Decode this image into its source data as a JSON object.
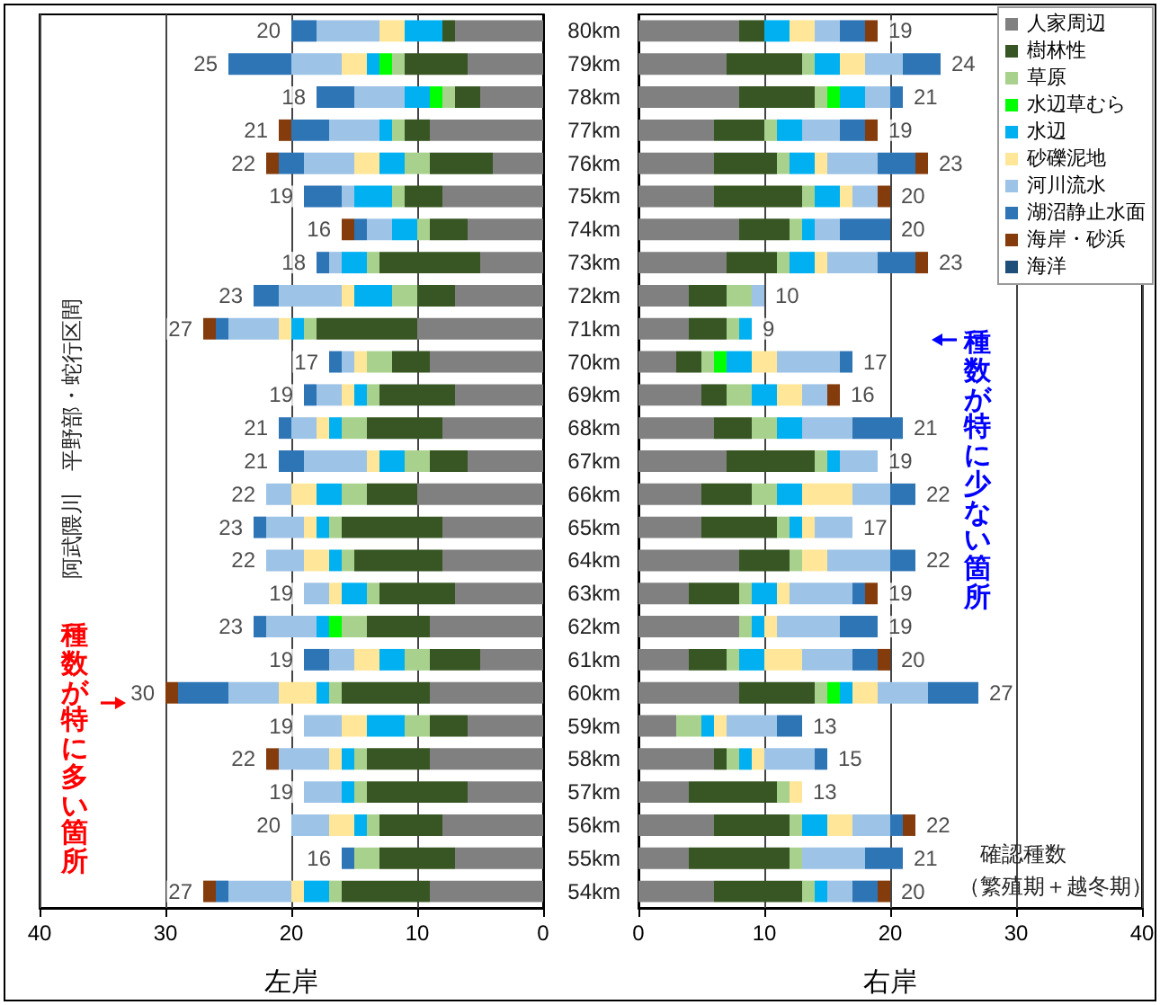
{
  "chart_data": [
    {
      "type": "bar",
      "orientation": "horizontal",
      "stacked": true,
      "xlabel": "左岸",
      "xlim": [
        40,
        0
      ],
      "xticks": [
        40,
        30,
        20,
        10,
        0
      ],
      "grid": "x",
      "tick_labels": "x",
      "categories": [
        null,
        null,
        null,
        null,
        null,
        null,
        null,
        null,
        null,
        null,
        null,
        null,
        null,
        null,
        null,
        null,
        null,
        null,
        null,
        null,
        null,
        null,
        null,
        null,
        null,
        null,
        null
      ],
      "series": [
        {
          "color": "#808080",
          "values": [
            7,
            6,
            5,
            9,
            4,
            8,
            6,
            5,
            7,
            10,
            9,
            7,
            8,
            6,
            10,
            8,
            8,
            7,
            9,
            5,
            9,
            6,
            9,
            6,
            8,
            7,
            9
          ]
        },
        {
          "color": "#375623",
          "values": [
            1,
            5,
            2,
            2,
            5,
            3,
            3,
            8,
            3,
            8,
            3,
            6,
            6,
            3,
            4,
            8,
            7,
            6,
            5,
            4,
            7,
            3,
            5,
            8,
            5,
            6,
            7
          ]
        },
        {
          "color": "#a9d18e",
          "values": [
            0,
            1,
            1,
            1,
            2,
            1,
            1,
            1,
            2,
            1,
            2,
            1,
            2,
            2,
            2,
            1,
            1,
            1,
            2,
            2,
            1,
            2,
            1,
            1,
            1,
            2,
            1
          ]
        },
        {
          "color": "#00ff00",
          "values": [
            0,
            1,
            1,
            0,
            0,
            0,
            0,
            0,
            0,
            0,
            0,
            0,
            0,
            0,
            0,
            0,
            0,
            0,
            1,
            0,
            0,
            0,
            0,
            0,
            0,
            0,
            0
          ]
        },
        {
          "color": "#00b0f0",
          "values": [
            3,
            1,
            2,
            1,
            2,
            3,
            2,
            2,
            3,
            1,
            0,
            1,
            1,
            2,
            2,
            1,
            1,
            2,
            1,
            2,
            1,
            3,
            1,
            1,
            1,
            0,
            2
          ]
        },
        {
          "color": "#ffe699",
          "values": [
            2,
            2,
            0,
            0,
            2,
            0,
            0,
            0,
            1,
            1,
            1,
            1,
            1,
            1,
            2,
            1,
            2,
            1,
            0,
            2,
            3,
            2,
            1,
            0,
            2,
            0,
            1
          ]
        },
        {
          "color": "#9dc3e6",
          "values": [
            5,
            4,
            4,
            4,
            4,
            1,
            2,
            1,
            5,
            4,
            1,
            2,
            2,
            5,
            2,
            3,
            3,
            2,
            4,
            2,
            4,
            3,
            4,
            3,
            3,
            0,
            5
          ]
        },
        {
          "color": "#2e75b6",
          "values": [
            2,
            5,
            3,
            3,
            2,
            3,
            1,
            1,
            2,
            1,
            1,
            1,
            1,
            2,
            0,
            1,
            0,
            0,
            1,
            2,
            4,
            0,
            0,
            0,
            0,
            1,
            1
          ]
        },
        {
          "color": "#843c0c",
          "values": [
            0,
            0,
            0,
            1,
            1,
            0,
            1,
            0,
            0,
            1,
            0,
            0,
            0,
            0,
            0,
            0,
            0,
            0,
            0,
            0,
            1,
            0,
            1,
            0,
            0,
            0,
            1
          ]
        },
        {
          "color": "#1f4e79",
          "values": [
            0,
            0,
            0,
            0,
            0,
            0,
            0,
            0,
            0,
            0,
            0,
            0,
            0,
            0,
            0,
            0,
            0,
            0,
            0,
            0,
            0,
            0,
            0,
            0,
            0,
            0,
            0
          ]
        }
      ],
      "totals": [
        "20",
        "25",
        "18",
        "21",
        "22",
        "19",
        "16",
        "18",
        "23",
        "27",
        "17",
        "19",
        "21",
        "21",
        "22",
        "23",
        "22",
        "19",
        "23",
        "19",
        "30",
        "19",
        "22",
        "19",
        "20",
        "16",
        "27"
      ],
      "annotations": [
        "阿武隈川　平野部・蛇行区間",
        "種数が特に多い箇所"
      ]
    },
    {
      "type": "bar",
      "orientation": "horizontal",
      "stacked": true,
      "xlabel": "右岸",
      "xlim": [
        0,
        40
      ],
      "xticks": [
        0,
        10,
        20,
        30,
        40
      ],
      "grid": "x",
      "legend": "top right",
      "categories": [
        "80km",
        "79km",
        "78km",
        "77km",
        "76km",
        "75km",
        "74km",
        "73km",
        "72km",
        "71km",
        "70km",
        "69km",
        "68km",
        "67km",
        "66km",
        "65km",
        "64km",
        "63km",
        "62km",
        "61km",
        "60km",
        "59km",
        "58km",
        "57km",
        "56km",
        "55km",
        "54km"
      ],
      "series": [
        {
          "name": "人家周辺",
          "color": "#808080",
          "values": [
            8,
            7,
            8,
            6,
            6,
            6,
            8,
            7,
            4,
            4,
            3,
            5,
            6,
            7,
            5,
            5,
            8,
            4,
            8,
            4,
            8,
            3,
            6,
            4,
            6,
            4,
            6
          ]
        },
        {
          "name": "樹林性",
          "color": "#375623",
          "values": [
            2,
            6,
            6,
            4,
            5,
            7,
            4,
            4,
            3,
            3,
            2,
            2,
            3,
            7,
            4,
            6,
            4,
            4,
            0,
            3,
            6,
            0,
            1,
            7,
            6,
            8,
            7
          ]
        },
        {
          "name": "草原",
          "color": "#a9d18e",
          "values": [
            0,
            1,
            1,
            1,
            1,
            1,
            1,
            1,
            2,
            1,
            1,
            2,
            2,
            1,
            2,
            1,
            1,
            1,
            1,
            1,
            1,
            2,
            1,
            1,
            1,
            1,
            1
          ]
        },
        {
          "name": "水辺草むら",
          "color": "#00ff00",
          "values": [
            0,
            0,
            1,
            0,
            0,
            0,
            0,
            0,
            0,
            0,
            1,
            0,
            0,
            0,
            0,
            0,
            0,
            0,
            0,
            0,
            1,
            0,
            0,
            0,
            0,
            0,
            0
          ]
        },
        {
          "name": "水辺",
          "color": "#00b0f0",
          "values": [
            2,
            2,
            2,
            2,
            2,
            2,
            1,
            2,
            0,
            1,
            2,
            2,
            2,
            1,
            2,
            1,
            0,
            2,
            1,
            2,
            1,
            1,
            1,
            0,
            2,
            0,
            1
          ]
        },
        {
          "name": "砂礫泥地",
          "color": "#ffe699",
          "values": [
            2,
            2,
            0,
            0,
            1,
            1,
            0,
            1,
            0,
            0,
            2,
            2,
            0,
            0,
            4,
            1,
            2,
            1,
            1,
            3,
            2,
            1,
            1,
            1,
            2,
            0,
            0
          ]
        },
        {
          "name": "河川流水",
          "color": "#9dc3e6",
          "values": [
            2,
            3,
            2,
            3,
            4,
            2,
            2,
            4,
            1,
            0,
            5,
            2,
            4,
            3,
            3,
            3,
            5,
            5,
            5,
            4,
            4,
            4,
            4,
            0,
            3,
            5,
            2
          ]
        },
        {
          "name": "湖沼静止水面",
          "color": "#2e75b6",
          "values": [
            2,
            3,
            1,
            2,
            3,
            0,
            4,
            3,
            0,
            0,
            1,
            0,
            4,
            0,
            2,
            0,
            2,
            1,
            3,
            2,
            4,
            2,
            1,
            0,
            1,
            3,
            2
          ]
        },
        {
          "name": "海岸・砂浜",
          "color": "#843c0c",
          "values": [
            1,
            0,
            0,
            1,
            1,
            1,
            0,
            1,
            0,
            0,
            0,
            1,
            0,
            0,
            0,
            0,
            0,
            1,
            0,
            1,
            0,
            0,
            0,
            0,
            1,
            0,
            1
          ]
        },
        {
          "name": "海洋",
          "color": "#1f4e79",
          "values": [
            0,
            0,
            0,
            0,
            0,
            0,
            0,
            0,
            0,
            0,
            0,
            0,
            0,
            0,
            0,
            0,
            0,
            0,
            0,
            0,
            0,
            0,
            0,
            0,
            0,
            0,
            0
          ]
        }
      ],
      "totals": [
        "19",
        "24",
        "21",
        "19",
        "23",
        "20",
        "20",
        "23",
        "10",
        "9",
        "17",
        "16",
        "21",
        "19",
        "22",
        "17",
        "22",
        "19",
        "19",
        "20",
        "27",
        "13",
        "15",
        "13",
        "22",
        "21",
        "20"
      ],
      "annotations": [
        "種数が特に少ない箇所",
        "確認種数",
        "（繁殖期＋越冬期）"
      ]
    }
  ]
}
